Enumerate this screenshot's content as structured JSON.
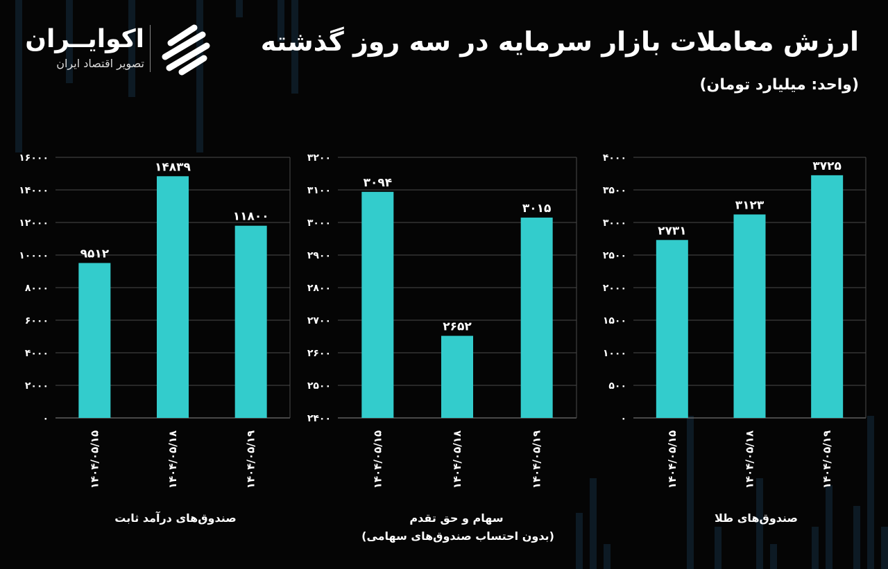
{
  "header": {
    "title": "ارزش معاملات بازار سرمایه در سه روز گذشته",
    "unit": "(واحد: میلیارد تومان)"
  },
  "logo": {
    "name": "اکوایــران",
    "tagline": "تصویر اقتصاد ایران"
  },
  "colors": {
    "bar": "#33CCCC",
    "background": "#050505",
    "grid": "#4a4a4a",
    "text": "#ffffff"
  },
  "chart_data": [
    {
      "type": "bar",
      "category_label": "صندوق‌های درآمد ثابت",
      "categories": [
        "۱۴۰۴/۰۵/۱۵",
        "۱۴۰۴/۰۵/۱۸",
        "۱۴۰۴/۰۵/۱۹"
      ],
      "values": [
        9512,
        14839,
        11800
      ],
      "value_labels": [
        "۹۵۱۲",
        "۱۴۸۳۹",
        "۱۱۸۰۰"
      ],
      "ylim": [
        0,
        16000
      ],
      "yticks": [
        "۰",
        "۲۰۰۰",
        "۴۰۰۰",
        "۶۰۰۰",
        "۸۰۰۰",
        "۱۰۰۰۰",
        "۱۲۰۰۰",
        "۱۴۰۰۰",
        "۱۶۰۰۰"
      ],
      "grid": true
    },
    {
      "type": "bar",
      "category_label": "سهام و حق تقدم",
      "category_sublabel": "(بدون احتساب صندوق‌های سهامی)",
      "categories": [
        "۱۴۰۴/۰۵/۱۵",
        "۱۴۰۴/۰۵/۱۸",
        "۱۴۰۴/۰۵/۱۹"
      ],
      "values": [
        3094,
        2652,
        3015
      ],
      "value_labels": [
        "۳۰۹۴",
        "۲۶۵۲",
        "۳۰۱۵"
      ],
      "ylim": [
        2400,
        3200
      ],
      "yticks": [
        "۲۴۰۰",
        "۲۵۰۰",
        "۲۶۰۰",
        "۲۷۰۰",
        "۲۸۰۰",
        "۲۹۰۰",
        "۳۰۰۰",
        "۳۱۰۰",
        "۳۲۰۰"
      ],
      "grid": true
    },
    {
      "type": "bar",
      "category_label": "صندوق‌های طلا",
      "categories": [
        "۱۴۰۴/۰۵/۱۵",
        "۱۴۰۴/۰۵/۱۸",
        "۱۴۰۴/۰۵/۱۹"
      ],
      "values": [
        2731,
        3123,
        3725
      ],
      "value_labels": [
        "۲۷۳۱",
        "۳۱۲۳",
        "۳۷۲۵"
      ],
      "ylim": [
        0,
        4000
      ],
      "yticks": [
        "۰",
        "۵۰۰",
        "۱۰۰۰",
        "۱۵۰۰",
        "۲۰۰۰",
        "۲۵۰۰",
        "۳۰۰۰",
        "۳۵۰۰",
        "۴۰۰۰"
      ],
      "grid": true
    }
  ]
}
